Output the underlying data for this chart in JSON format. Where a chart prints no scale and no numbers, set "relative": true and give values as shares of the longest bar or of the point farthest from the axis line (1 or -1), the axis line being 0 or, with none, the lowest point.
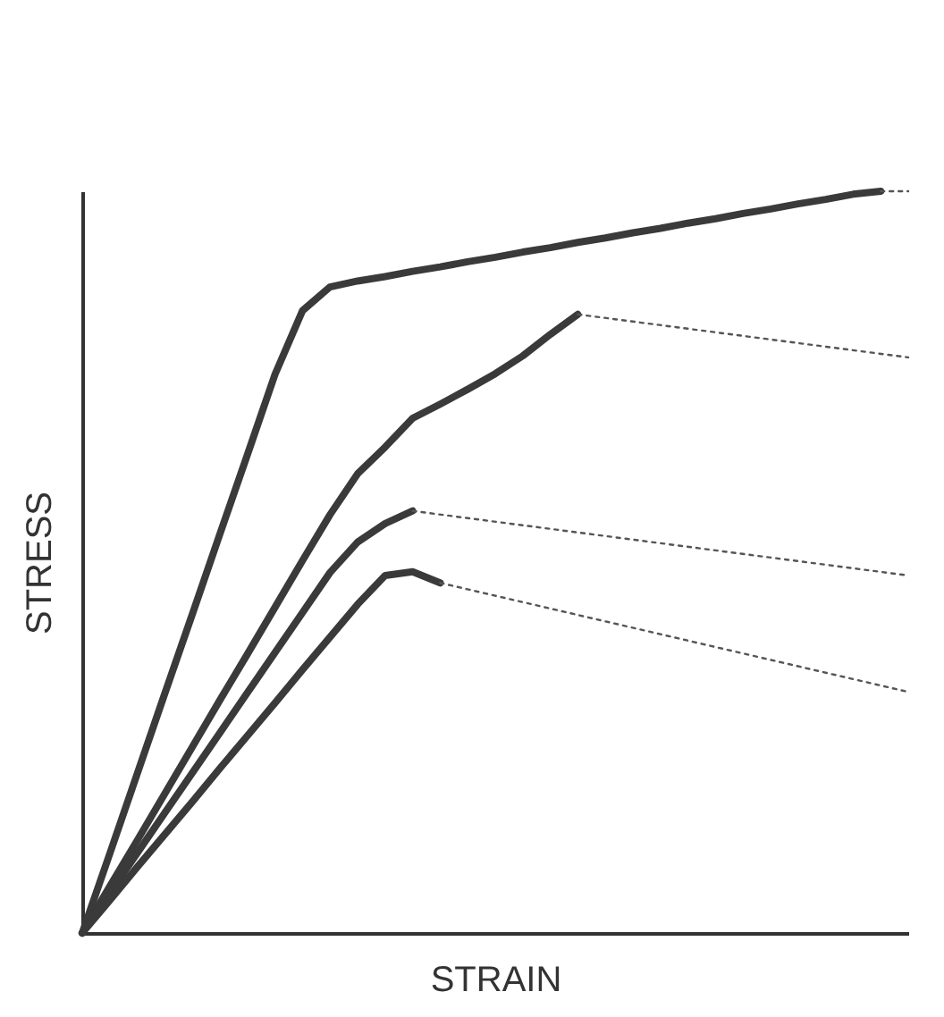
{
  "chart_data": {
    "type": "line",
    "xlabel": "STRAIN",
    "ylabel": "STRESS",
    "relative": true,
    "categories": [
      null,
      null,
      null,
      null,
      null,
      null,
      null,
      null,
      null,
      null,
      null,
      null,
      null,
      null,
      null,
      null,
      null,
      null,
      null,
      null,
      null,
      null,
      null,
      null,
      null,
      null,
      null,
      null,
      null,
      null,
      null
    ],
    "series": [
      {
        "color": "#3a3a3a",
        "line_style": "solid",
        "values": [
          0,
          0.107,
          0.215,
          0.323,
          0.43,
          0.538,
          0.645,
          0.753,
          0.839,
          0.871,
          0.879,
          0.885,
          0.892,
          0.898,
          0.905,
          0.911,
          0.918,
          0.924,
          0.931,
          0.937,
          0.944,
          0.95,
          0.957,
          0.963,
          0.97,
          0.976,
          0.983,
          0.989,
          0.996,
          1.0,
          null
        ]
      },
      {
        "color": "#3a3a3a",
        "line_style": "solid",
        "values": [
          0,
          0.063,
          0.125,
          0.188,
          0.251,
          0.314,
          0.376,
          0.439,
          0.502,
          0.564,
          0.619,
          0.655,
          0.694,
          0.713,
          0.733,
          0.754,
          0.778,
          0.807,
          0.834,
          null,
          null,
          null,
          null,
          null,
          null,
          null,
          null,
          null,
          null,
          null,
          null
        ]
      },
      {
        "color": "#3a3a3a",
        "line_style": "solid",
        "values": [
          0,
          0.054,
          0.108,
          0.162,
          0.216,
          0.27,
          0.324,
          0.378,
          0.432,
          0.486,
          0.527,
          0.552,
          0.569,
          null,
          null,
          null,
          null,
          null,
          null,
          null,
          null,
          null,
          null,
          null,
          null,
          null,
          null,
          null,
          null,
          null,
          null
        ]
      },
      {
        "color": "#3a3a3a",
        "line_style": "solid",
        "values": [
          0,
          0.044,
          0.089,
          0.133,
          0.177,
          0.222,
          0.266,
          0.31,
          0.355,
          0.399,
          0.443,
          0.482,
          0.487,
          0.472,
          null,
          null,
          null,
          null,
          null,
          null,
          null,
          null,
          null,
          null,
          null,
          null,
          null,
          null,
          null,
          null,
          null
        ]
      },
      {
        "color": "#555555",
        "line_style": "dotted",
        "values": [
          null,
          null,
          null,
          null,
          null,
          null,
          null,
          null,
          null,
          null,
          null,
          null,
          null,
          null,
          null,
          null,
          null,
          null,
          null,
          null,
          null,
          null,
          null,
          null,
          null,
          null,
          null,
          null,
          null,
          1.0,
          1.0
        ]
      },
      {
        "color": "#555555",
        "line_style": "dotted",
        "values": [
          null,
          null,
          null,
          null,
          null,
          null,
          null,
          null,
          null,
          null,
          null,
          null,
          null,
          null,
          null,
          null,
          null,
          null,
          0.834,
          null,
          null,
          null,
          null,
          null,
          null,
          null,
          null,
          null,
          null,
          null,
          0.776
        ]
      },
      {
        "color": "#555555",
        "line_style": "dotted",
        "values": [
          null,
          null,
          null,
          null,
          null,
          null,
          null,
          null,
          null,
          null,
          null,
          null,
          0.569,
          null,
          null,
          null,
          null,
          null,
          null,
          null,
          null,
          null,
          null,
          null,
          null,
          null,
          null,
          null,
          null,
          null,
          0.482
        ]
      },
      {
        "color": "#555555",
        "line_style": "dotted",
        "values": [
          null,
          null,
          null,
          null,
          null,
          null,
          null,
          null,
          null,
          null,
          null,
          null,
          null,
          0.472,
          null,
          null,
          null,
          null,
          null,
          null,
          null,
          null,
          null,
          null,
          null,
          null,
          null,
          null,
          null,
          null,
          0.325
        ]
      }
    ]
  }
}
